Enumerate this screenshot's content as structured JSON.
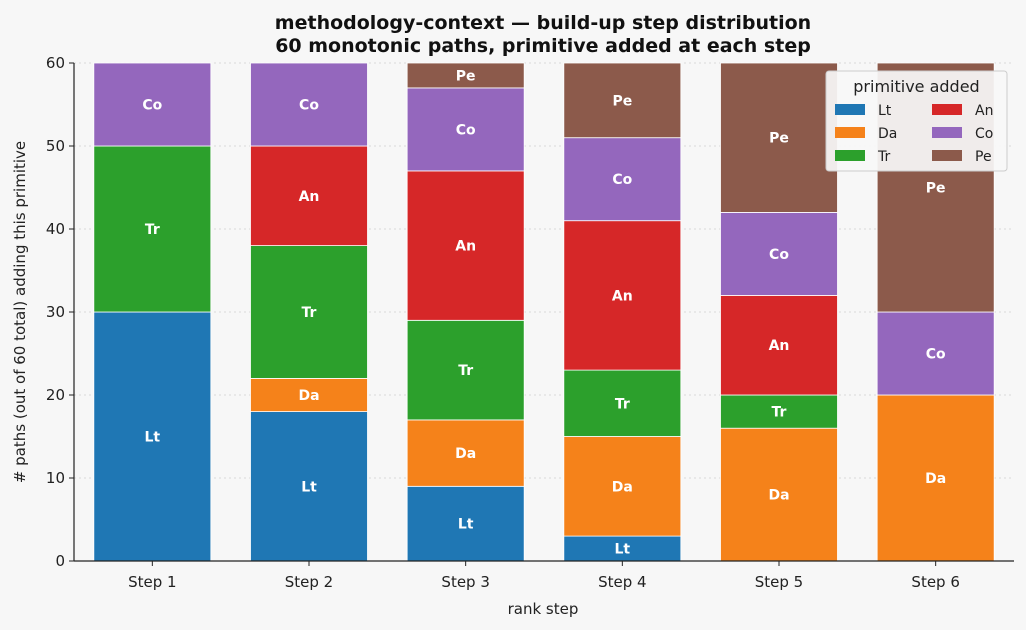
{
  "chart_data": {
    "type": "bar",
    "stacked": true,
    "title": "methodology-context — build-up step distribution",
    "subtitle": "60 monotonic paths, primitive added at each step",
    "xlabel": "rank step",
    "ylabel": "# paths (out of 60 total) adding this primitive",
    "ylim": [
      0,
      60
    ],
    "yticks": [
      0,
      10,
      20,
      30,
      40,
      50,
      60
    ],
    "grid": true,
    "categories": [
      "Step 1",
      "Step 2",
      "Step 3",
      "Step 4",
      "Step 5",
      "Step 6"
    ],
    "series": [
      {
        "name": "Lt",
        "color": "#1f77b4",
        "values": [
          30,
          18,
          9,
          3,
          0,
          0
        ]
      },
      {
        "name": "Da",
        "color": "#f5821a",
        "values": [
          0,
          4,
          8,
          12,
          16,
          20
        ]
      },
      {
        "name": "Tr",
        "color": "#2ca02c",
        "values": [
          20,
          16,
          12,
          8,
          4,
          0
        ]
      },
      {
        "name": "An",
        "color": "#d62728",
        "values": [
          0,
          12,
          18,
          18,
          12,
          0
        ]
      },
      {
        "name": "Co",
        "color": "#9467bd",
        "values": [
          10,
          10,
          10,
          10,
          10,
          10
        ]
      },
      {
        "name": "Pe",
        "color": "#8c5a4b",
        "values": [
          0,
          0,
          3,
          9,
          18,
          30
        ]
      }
    ],
    "legend": {
      "title": "primitive added",
      "placement": "top-right",
      "order": [
        "Lt",
        "An",
        "Da",
        "Co",
        "Tr",
        "Pe"
      ]
    }
  }
}
